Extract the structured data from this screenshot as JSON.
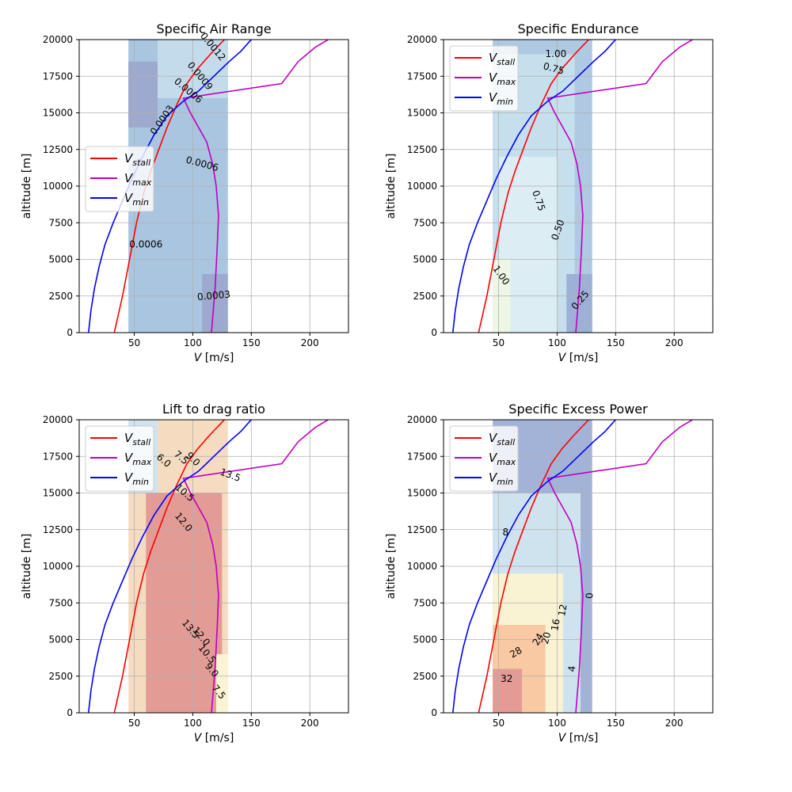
{
  "chart_data": [
    {
      "type": "line",
      "title": "Specific Air Range",
      "xlabel_main": "V",
      "xlabel_unit": " [m/s]",
      "ylabel": "altitude [m]",
      "xlim": [
        3,
        233
      ],
      "ylim": [
        0,
        20000
      ],
      "xticks": [
        "50",
        "100",
        "150",
        "200"
      ],
      "yticks": [
        "0",
        "2500",
        "5000",
        "7500",
        "10000",
        "12500",
        "15000",
        "17500",
        "20000"
      ],
      "grid": true,
      "legend_position": "center-left",
      "legend": [
        {
          "sym": "V",
          "sub": "stall",
          "color": "#ff0000"
        },
        {
          "sym": "V",
          "sub": "max",
          "color": "#bf00bf"
        },
        {
          "sym": "V",
          "sub": "min",
          "color": "#0000ff"
        }
      ],
      "contour_labels": [
        {
          "text": "0.0003",
          "v": 118,
          "h": 2500,
          "rot": -5
        },
        {
          "text": "0.0006",
          "v": 60,
          "h": 6000,
          "rot": 0
        },
        {
          "text": "0.0006",
          "v": 108,
          "h": 11500,
          "rot": 15
        },
        {
          "text": "0.0003",
          "v": 74,
          "h": 14500,
          "rot": -55
        },
        {
          "text": "0.0006",
          "v": 96,
          "h": 16500,
          "rot": 40
        },
        {
          "text": "0.0009",
          "v": 106,
          "h": 17500,
          "rot": 50
        },
        {
          "text": "0.0012",
          "v": 117,
          "h": 19500,
          "rot": 50
        }
      ]
    },
    {
      "type": "line",
      "title": "Specific Endurance",
      "xlabel_main": "V",
      "xlabel_unit": " [m/s]",
      "ylabel": "altitude [m]",
      "xlim": [
        3,
        233
      ],
      "ylim": [
        0,
        20000
      ],
      "xticks": [
        "50",
        "100",
        "150",
        "200"
      ],
      "yticks": [
        "0",
        "2500",
        "5000",
        "7500",
        "10000",
        "12500",
        "15000",
        "17500",
        "20000"
      ],
      "grid": true,
      "legend_position": "top-left",
      "legend": [
        {
          "sym": "V",
          "sub": "stall",
          "color": "#ff0000"
        },
        {
          "sym": "V",
          "sub": "max",
          "color": "#bf00bf"
        },
        {
          "sym": "V",
          "sub": "min",
          "color": "#0000ff"
        }
      ],
      "contour_labels": [
        {
          "text": "0.25",
          "v": 120,
          "h": 2200,
          "rot": -50
        },
        {
          "text": "0.50",
          "v": 101,
          "h": 7000,
          "rot": -70
        },
        {
          "text": "0.75",
          "v": 84,
          "h": 9000,
          "rot": 70
        },
        {
          "text": "1.00",
          "v": 52,
          "h": 3900,
          "rot": 55
        },
        {
          "text": "0.75",
          "v": 97,
          "h": 18000,
          "rot": 15
        },
        {
          "text": "1.00",
          "v": 99,
          "h": 19000,
          "rot": 0
        }
      ]
    },
    {
      "type": "line",
      "title": "Lift to drag ratio",
      "xlabel_main": "V",
      "xlabel_unit": " [m/s]",
      "ylabel": "altitude [m]",
      "xlim": [
        3,
        233
      ],
      "ylim": [
        0,
        20000
      ],
      "xticks": [
        "50",
        "100",
        "150",
        "200"
      ],
      "yticks": [
        "0",
        "2500",
        "5000",
        "7500",
        "10000",
        "12500",
        "15000",
        "17500",
        "20000"
      ],
      "grid": true,
      "legend_position": "top-left",
      "legend": [
        {
          "sym": "V",
          "sub": "stall",
          "color": "#ff0000"
        },
        {
          "sym": "V",
          "sub": "max",
          "color": "#bf00bf"
        },
        {
          "sym": "V",
          "sub": "min",
          "color": "#0000ff"
        }
      ],
      "contour_labels": [
        {
          "text": "6.0",
          "v": 75,
          "h": 17200,
          "rot": 40
        },
        {
          "text": "7.5",
          "v": 90,
          "h": 17400,
          "rot": 40
        },
        {
          "text": "9.0",
          "v": 100,
          "h": 17300,
          "rot": 45
        },
        {
          "text": "10.5",
          "v": 93,
          "h": 15000,
          "rot": 40
        },
        {
          "text": "12.0",
          "v": 92,
          "h": 13000,
          "rot": 50
        },
        {
          "text": "13.5",
          "v": 132,
          "h": 16200,
          "rot": 20
        },
        {
          "text": "13.5",
          "v": 98,
          "h": 5700,
          "rot": 50
        },
        {
          "text": "12.0",
          "v": 107,
          "h": 5200,
          "rot": 50
        },
        {
          "text": "10.5",
          "v": 112,
          "h": 4000,
          "rot": 50
        },
        {
          "text": "9.0",
          "v": 116,
          "h": 2900,
          "rot": 50
        },
        {
          "text": "7.5",
          "v": 122,
          "h": 1400,
          "rot": 50
        }
      ]
    },
    {
      "type": "line",
      "title": "Specific Excess Power",
      "xlabel_main": "V",
      "xlabel_unit": " [m/s]",
      "ylabel": "altitude [m]",
      "xlim": [
        3,
        233
      ],
      "ylim": [
        0,
        20000
      ],
      "xticks": [
        "50",
        "100",
        "150",
        "200"
      ],
      "yticks": [
        "0",
        "2500",
        "5000",
        "7500",
        "10000",
        "12500",
        "15000",
        "17500",
        "20000"
      ],
      "grid": true,
      "legend_position": "top-left",
      "legend": [
        {
          "sym": "V",
          "sub": "stall",
          "color": "#ff0000"
        },
        {
          "sym": "V",
          "sub": "max",
          "color": "#bf00bf"
        },
        {
          "sym": "V",
          "sub": "min",
          "color": "#0000ff"
        }
      ],
      "contour_labels": [
        {
          "text": "8",
          "v": 56,
          "h": 12300,
          "rot": 0
        },
        {
          "text": "12",
          "v": 105,
          "h": 7000,
          "rot": -80
        },
        {
          "text": "16",
          "v": 99,
          "h": 6000,
          "rot": -80
        },
        {
          "text": "20",
          "v": 91,
          "h": 5100,
          "rot": -75
        },
        {
          "text": "24",
          "v": 84,
          "h": 5000,
          "rot": -60
        },
        {
          "text": "28",
          "v": 65,
          "h": 4100,
          "rot": -30
        },
        {
          "text": "32",
          "v": 57,
          "h": 2300,
          "rot": 0
        },
        {
          "text": "4",
          "v": 113,
          "h": 3000,
          "rot": -85
        },
        {
          "text": "0",
          "v": 128,
          "h": 8000,
          "rot": -90
        }
      ]
    }
  ],
  "series_curves": {
    "stall": {
      "v": [
        33,
        40,
        46,
        52,
        58,
        64,
        71,
        78,
        86,
        95,
        104,
        115,
        127
      ],
      "h": [
        0,
        2500,
        5000,
        7500,
        9500,
        11000,
        12500,
        14000,
        15500,
        17000,
        18000,
        19000,
        20000
      ]
    },
    "vmax": {
      "v": [
        116,
        117,
        118,
        119,
        120,
        121,
        122,
        120,
        117,
        112,
        105,
        98,
        92,
        176,
        190,
        205,
        222
      ],
      "h": [
        0,
        1000,
        2000,
        3000,
        4500,
        6000,
        8000,
        10000,
        11500,
        13000,
        14000,
        15000,
        16000,
        17000,
        18500,
        19500,
        20300
      ]
    },
    "vmin": {
      "v": [
        11,
        13,
        16,
        20,
        25,
        32,
        40,
        48,
        57,
        67,
        78,
        92,
        105,
        118,
        131,
        141,
        151
      ],
      "h": [
        0,
        1500,
        3000,
        4500,
        6000,
        7500,
        9000,
        10500,
        12000,
        13500,
        14800,
        15800,
        16500,
        17500,
        18500,
        19200,
        20100
      ]
    }
  }
}
